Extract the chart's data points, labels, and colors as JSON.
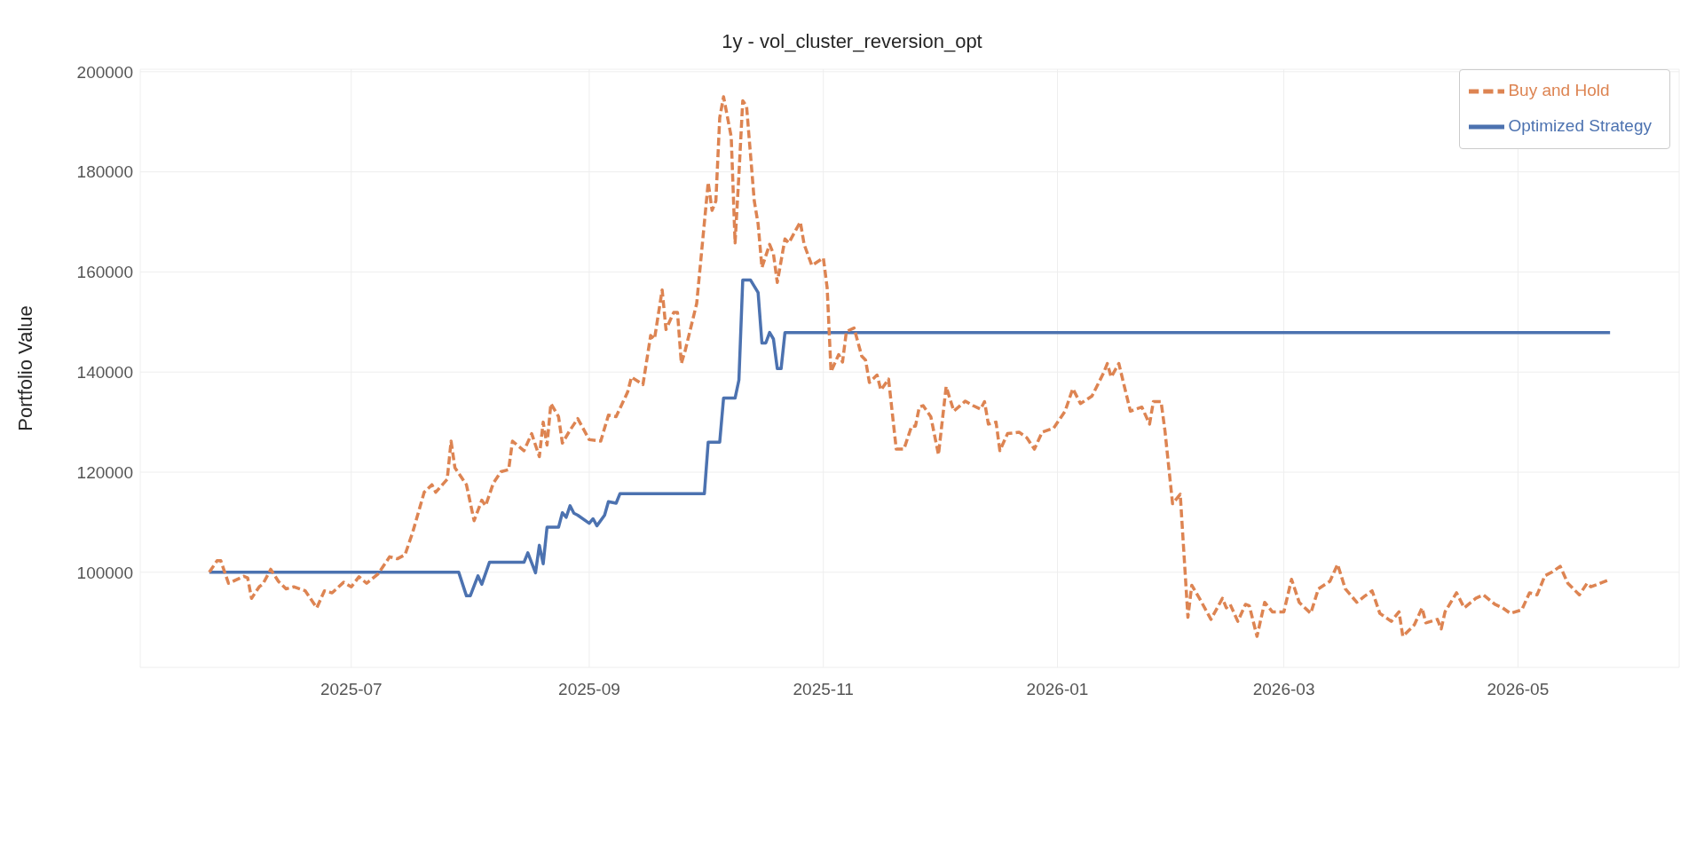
{
  "chart_data": {
    "type": "line",
    "title": "1y - vol_cluster_reversion_opt",
    "ylabel": "Portfolio Value",
    "xlim": [
      "2025-05-07",
      "2026-06-12"
    ],
    "xticks": [
      {
        "value": "2025-07-01",
        "label": "2025-07"
      },
      {
        "value": "2025-09-01",
        "label": "2025-09"
      },
      {
        "value": "2025-11-01",
        "label": "2025-11"
      },
      {
        "value": "2026-01-01",
        "label": "2026-01"
      },
      {
        "value": "2026-03-01",
        "label": "2026-03"
      },
      {
        "value": "2026-05-01",
        "label": "2026-05"
      }
    ],
    "ylim": [
      81000,
      200500
    ],
    "yticks": [
      100000,
      120000,
      140000,
      160000,
      180000,
      200000
    ],
    "grid": true,
    "legend": "top right",
    "marker": "none",
    "series": [
      {
        "name": "Optimized Strategy",
        "color": "#4c72b0",
        "line_style": "solid",
        "x": [
          "2025-05-25",
          "2025-07-29",
          "2025-07-31",
          "2025-08-01",
          "2025-08-03",
          "2025-08-04",
          "2025-08-06",
          "2025-08-15",
          "2025-08-16",
          "2025-08-18",
          "2025-08-19",
          "2025-08-20",
          "2025-08-21",
          "2025-08-24",
          "2025-08-25",
          "2025-08-26",
          "2025-08-27",
          "2025-08-28",
          "2025-08-29",
          "2025-09-01",
          "2025-09-02",
          "2025-09-03",
          "2025-09-05",
          "2025-09-06",
          "2025-09-08",
          "2025-09-09",
          "2025-10-01",
          "2025-10-02",
          "2025-10-05",
          "2025-10-06",
          "2025-10-09",
          "2025-10-10",
          "2025-10-11",
          "2025-10-13",
          "2025-10-15",
          "2025-10-16",
          "2025-10-17",
          "2025-10-18",
          "2025-10-19",
          "2025-10-20",
          "2025-10-21",
          "2025-10-22",
          "2026-05-25"
        ],
        "values": [
          100000,
          100000,
          95300,
          95300,
          99300,
          97600,
          102000,
          102000,
          103900,
          99900,
          105400,
          101700,
          109000,
          109000,
          111900,
          111000,
          113300,
          111800,
          111400,
          109800,
          110700,
          109300,
          111400,
          114100,
          113800,
          115700,
          115700,
          126000,
          126000,
          134800,
          134800,
          138400,
          158400,
          158400,
          155900,
          145800,
          145800,
          147900,
          146600,
          140700,
          140700,
          147900,
          147900
        ]
      },
      {
        "name": "Buy and Hold",
        "color": "#dd8452",
        "line_style": "dashed",
        "x": [
          "2025-05-25",
          "2025-05-27",
          "2025-05-28",
          "2025-05-30",
          "2025-06-03",
          "2025-06-04",
          "2025-06-05",
          "2025-06-07",
          "2025-06-08",
          "2025-06-10",
          "2025-06-12",
          "2025-06-14",
          "2025-06-16",
          "2025-06-19",
          "2025-06-22",
          "2025-06-24",
          "2025-06-26",
          "2025-06-29",
          "2025-07-01",
          "2025-07-03",
          "2025-07-05",
          "2025-07-08",
          "2025-07-11",
          "2025-07-13",
          "2025-07-15",
          "2025-07-17",
          "2025-07-20",
          "2025-07-22",
          "2025-07-23",
          "2025-07-26",
          "2025-07-27",
          "2025-07-28",
          "2025-07-31",
          "2025-08-02",
          "2025-08-04",
          "2025-08-05",
          "2025-08-07",
          "2025-08-09",
          "2025-08-11",
          "2025-08-12",
          "2025-08-15",
          "2025-08-17",
          "2025-08-19",
          "2025-08-20",
          "2025-08-21",
          "2025-08-22",
          "2025-08-24",
          "2025-08-25",
          "2025-08-27",
          "2025-08-29",
          "2025-09-01",
          "2025-09-04",
          "2025-09-06",
          "2025-09-08",
          "2025-09-11",
          "2025-09-12",
          "2025-09-15",
          "2025-09-17",
          "2025-09-18",
          "2025-09-20",
          "2025-09-21",
          "2025-09-23",
          "2025-09-24",
          "2025-09-25",
          "2025-09-26",
          "2025-09-29",
          "2025-10-02",
          "2025-10-03",
          "2025-10-04",
          "2025-10-05",
          "2025-10-06",
          "2025-10-08",
          "2025-10-09",
          "2025-10-10",
          "2025-10-11",
          "2025-10-12",
          "2025-10-14",
          "2025-10-15",
          "2025-10-16",
          "2025-10-18",
          "2025-10-19",
          "2025-10-20",
          "2025-10-22",
          "2025-10-23",
          "2025-10-26",
          "2025-10-27",
          "2025-10-29",
          "2025-11-01",
          "2025-11-02",
          "2025-11-03",
          "2025-11-05",
          "2025-11-06",
          "2025-11-07",
          "2025-11-09",
          "2025-11-11",
          "2025-11-12",
          "2025-11-13",
          "2025-11-15",
          "2025-11-16",
          "2025-11-18",
          "2025-11-20",
          "2025-11-22",
          "2025-11-24",
          "2025-11-25",
          "2025-11-26",
          "2025-11-27",
          "2025-11-29",
          "2025-12-01",
          "2025-12-03",
          "2025-12-05",
          "2025-12-08",
          "2025-12-10",
          "2025-12-12",
          "2025-12-13",
          "2025-12-14",
          "2025-12-16",
          "2025-12-17",
          "2025-12-19",
          "2025-12-22",
          "2025-12-24",
          "2025-12-26",
          "2025-12-28",
          "2025-12-31",
          "2026-01-03",
          "2026-01-05",
          "2026-01-07",
          "2026-01-10",
          "2026-01-13",
          "2026-01-14",
          "2026-01-15",
          "2026-01-17",
          "2026-01-20",
          "2026-01-23",
          "2026-01-25",
          "2026-01-26",
          "2026-01-28",
          "2026-01-29",
          "2026-01-31",
          "2026-02-02",
          "2026-02-04",
          "2026-02-05",
          "2026-02-07",
          "2026-02-10",
          "2026-02-13",
          "2026-02-14",
          "2026-02-15",
          "2026-02-17",
          "2026-02-19",
          "2026-02-20",
          "2026-02-22",
          "2026-02-24",
          "2026-02-26",
          "2026-03-01",
          "2026-03-03",
          "2026-03-05",
          "2026-03-08",
          "2026-03-10",
          "2026-03-13",
          "2026-03-15",
          "2026-03-17",
          "2026-03-20",
          "2026-03-22",
          "2026-03-24",
          "2026-03-26",
          "2026-03-29",
          "2026-03-31",
          "2026-04-01",
          "2026-04-04",
          "2026-04-06",
          "2026-04-07",
          "2026-04-10",
          "2026-04-11",
          "2026-04-12",
          "2026-04-15",
          "2026-04-17",
          "2026-04-20",
          "2026-04-22",
          "2026-04-25",
          "2026-04-27",
          "2026-04-29",
          "2026-05-02",
          "2026-05-04",
          "2026-05-06",
          "2026-05-08",
          "2026-05-10",
          "2026-05-12",
          "2026-05-14",
          "2026-05-17",
          "2026-05-19",
          "2026-05-20",
          "2026-05-25"
        ],
        "values": [
          100000,
          102300,
          102300,
          97800,
          99200,
          98900,
          94800,
          97100,
          97700,
          100600,
          98200,
          96700,
          97100,
          96300,
          92900,
          96300,
          95900,
          98000,
          97100,
          99100,
          97800,
          99700,
          103100,
          102700,
          103500,
          108000,
          116000,
          117500,
          116000,
          118600,
          126200,
          120900,
          117500,
          110300,
          114400,
          113300,
          117800,
          120100,
          120500,
          126200,
          124300,
          127700,
          123100,
          130000,
          125400,
          133700,
          131100,
          125800,
          128400,
          130700,
          126500,
          126200,
          131400,
          131100,
          136000,
          139000,
          137500,
          147300,
          146600,
          156400,
          148500,
          151900,
          151900,
          141700,
          144300,
          153700,
          177900,
          172300,
          174200,
          190800,
          195000,
          187000,
          165800,
          179400,
          194200,
          193100,
          174200,
          169600,
          160900,
          165500,
          163600,
          157900,
          166600,
          165800,
          170000,
          165500,
          161300,
          162800,
          156800,
          140100,
          143500,
          142000,
          148100,
          148800,
          143200,
          142400,
          137900,
          139400,
          136400,
          138600,
          124600,
          124600,
          129200,
          129200,
          133000,
          133300,
          131100,
          123500,
          137100,
          132200,
          134200,
          133300,
          132600,
          134100,
          129600,
          130000,
          124300,
          127700,
          128000,
          126900,
          124600,
          128000,
          128800,
          132200,
          136700,
          133700,
          135200,
          139800,
          141700,
          139000,
          141700,
          132200,
          133000,
          129600,
          134100,
          134100,
          128400,
          113700,
          115600,
          91000,
          97400,
          94800,
          90600,
          94800,
          92900,
          93600,
          90200,
          93600,
          93300,
          87200,
          94000,
          92100,
          92100,
          98600,
          94000,
          91800,
          96700,
          98200,
          101600,
          96700,
          94000,
          95200,
          96300,
          91800,
          90200,
          92100,
          87200,
          89500,
          92900,
          89900,
          90600,
          88700,
          92100,
          95900,
          92900,
          94800,
          95500,
          93600,
          92900,
          91800,
          92500,
          95900,
          95500,
          99300,
          100100,
          101200,
          97800,
          95500,
          97800,
          97100,
          98600
        ]
      }
    ]
  }
}
